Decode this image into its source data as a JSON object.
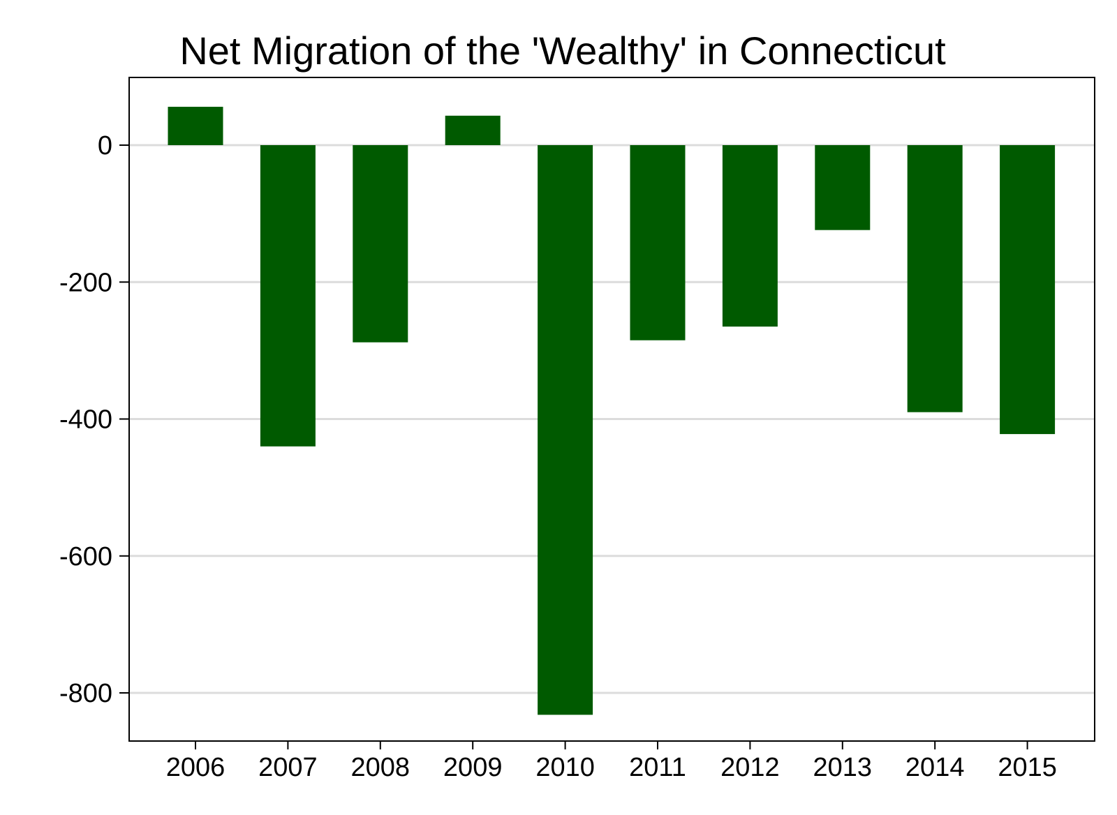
{
  "chart_data": {
    "type": "bar",
    "title": "Net Migration of the 'Wealthy' in Connecticut",
    "xlabel": "",
    "ylabel": "",
    "categories": [
      "2006",
      "2007",
      "2008",
      "2009",
      "2010",
      "2011",
      "2012",
      "2013",
      "2014",
      "2015"
    ],
    "values": [
      56,
      -440,
      -288,
      43,
      -832,
      -285,
      -265,
      -124,
      -390,
      -422
    ],
    "yticks": [
      0,
      -200,
      -400,
      -600,
      -800
    ],
    "ytick_labels": [
      "0",
      "-200",
      "-400",
      "-600",
      "-800"
    ],
    "ylim": [
      -870,
      100
    ],
    "grid": true,
    "legend": "none"
  },
  "colors": {
    "bar": "#005a00",
    "grid": "#dcdcdc",
    "frame": "#000000",
    "background": "#ffffff"
  }
}
